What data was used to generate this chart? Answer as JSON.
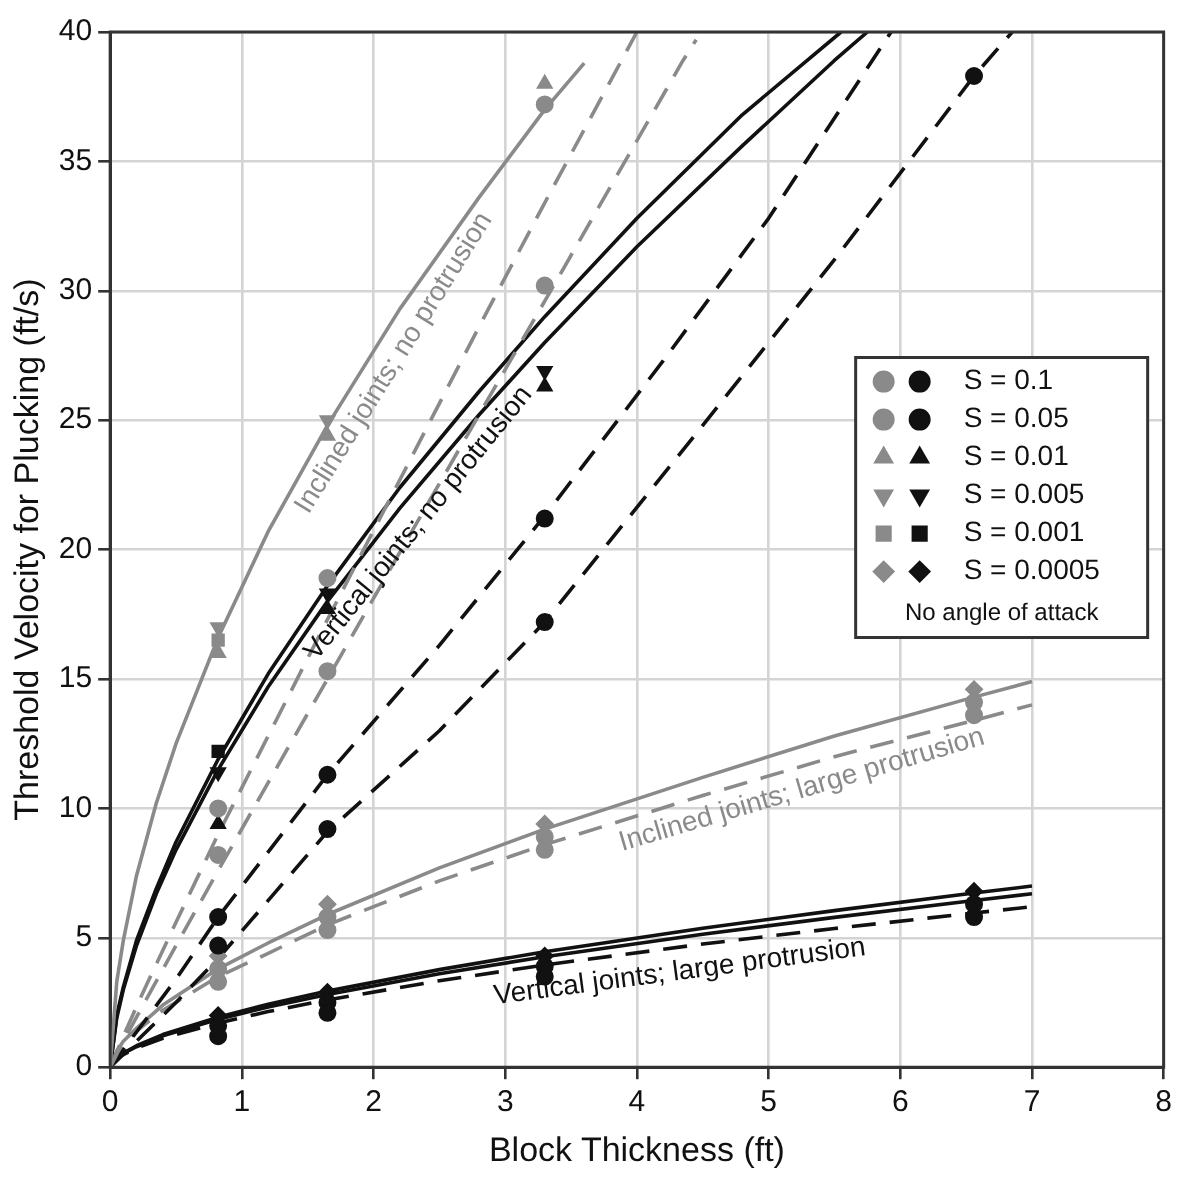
{
  "chart_data": {
    "type": "scatter",
    "xlabel": "Block Thickness (ft)",
    "ylabel": "Threshold Velocity for Plucking (ft/s)",
    "xlim": [
      0,
      8
    ],
    "xticks": [
      0,
      1,
      2,
      3,
      4,
      5,
      6,
      7,
      8
    ],
    "ylim": [
      0,
      40
    ],
    "yticks": [
      0,
      5,
      10,
      15,
      20,
      25,
      30,
      35,
      40
    ],
    "grid": true,
    "legend": "right",
    "legend_title": "No angle of attack",
    "annotations": [
      {
        "text": "Inclined joints; no protrusion",
        "x": 2.0,
        "y": 27.7
      },
      {
        "text": "Vertical joints; no protrusion",
        "x": 2.2,
        "y": 21.6
      },
      {
        "text": "Inclined joints; large protrusion",
        "x": 5.2,
        "y": 11.6
      },
      {
        "text": "Vertical joints; large protrusion",
        "x": 4.3,
        "y": 4.6
      }
    ],
    "series": [
      {
        "type": "line",
        "color": "#8a8a8a",
        "line_style": "solid",
        "x": [
          0,
          0.05,
          0.1,
          0.2,
          0.35,
          0.5,
          0.82,
          1.2,
          1.65,
          2.2,
          2.8,
          3.3,
          3.6
        ],
        "values": [
          0,
          3.3,
          4.9,
          7.4,
          10.2,
          12.5,
          16.6,
          20.7,
          24.8,
          29.3,
          33.6,
          37.0,
          38.8
        ]
      },
      {
        "type": "line",
        "color": "#8a8a8a",
        "line_style": "dashed",
        "x": [
          0,
          0.1,
          0.25,
          0.5,
          0.82,
          1.2,
          1.65,
          2.2,
          2.8,
          3.3,
          4.0
        ],
        "values": [
          0,
          1.2,
          2.9,
          5.6,
          9.0,
          12.8,
          17.3,
          22.7,
          28.6,
          33.4,
          40
        ]
      },
      {
        "type": "line",
        "color": "#8a8a8a",
        "line_style": "dashed",
        "x": [
          0,
          0.1,
          0.25,
          0.5,
          0.82,
          1.2,
          1.65,
          2.2,
          2.8,
          3.3,
          4.0,
          4.35,
          4.45
        ],
        "values": [
          0,
          1.0,
          2.4,
          4.7,
          7.6,
          11.0,
          15.0,
          19.9,
          25.2,
          29.6,
          35.8,
          38.9,
          39.7
        ]
      },
      {
        "type": "line",
        "color": "#111111",
        "line_style": "solid",
        "x": [
          0,
          0.05,
          0.1,
          0.2,
          0.35,
          0.5,
          0.82,
          1.2,
          1.65,
          2.2,
          2.8,
          3.3,
          4.0,
          4.8,
          5.5,
          5.75
        ],
        "values": [
          0,
          1.9,
          3.0,
          4.7,
          6.7,
          8.4,
          11.5,
          14.7,
          18.0,
          21.6,
          25.2,
          28.0,
          31.7,
          35.6,
          38.9,
          40
        ]
      },
      {
        "type": "line",
        "color": "#111111",
        "line_style": "solid",
        "x": [
          0,
          0.05,
          0.1,
          0.2,
          0.35,
          0.5,
          0.82,
          1.2,
          1.65,
          2.2,
          2.8,
          3.3,
          4.0,
          4.8,
          5.55
        ],
        "values": [
          0,
          2.0,
          3.1,
          4.9,
          6.9,
          8.7,
          11.9,
          15.2,
          18.6,
          22.4,
          26.1,
          29.0,
          32.8,
          36.8,
          40
        ]
      },
      {
        "type": "line",
        "color": "#111111",
        "line_style": "dashed",
        "x": [
          0,
          0.5,
          0.82,
          1.65,
          2.5,
          3.3,
          4.2,
          5.0,
          5.93
        ],
        "values": [
          0,
          3.4,
          5.8,
          11.3,
          16.3,
          21.3,
          27.3,
          32.8,
          40
        ]
      },
      {
        "type": "line",
        "color": "#111111",
        "line_style": "dashed",
        "x": [
          0,
          0.5,
          0.82,
          1.65,
          2.5,
          3.3,
          4.5,
          5.5,
          6.56,
          6.85
        ],
        "values": [
          0,
          2.5,
          4.2,
          9.1,
          13.0,
          17.2,
          24.8,
          31.2,
          38.3,
          40
        ]
      },
      {
        "type": "line",
        "color": "#8a8a8a",
        "line_style": "solid",
        "x": [
          0,
          0.05,
          0.1,
          0.2,
          0.4,
          0.82,
          1.2,
          1.65,
          2.5,
          3.3,
          4.5,
          5.5,
          6.56,
          7.0
        ],
        "values": [
          0,
          0.63,
          1.0,
          1.5,
          2.4,
          3.8,
          4.8,
          5.9,
          7.7,
          9.2,
          11.2,
          12.8,
          14.3,
          14.9
        ]
      },
      {
        "type": "line",
        "color": "#8a8a8a",
        "line_style": "dashed",
        "x": [
          0,
          0.05,
          0.1,
          0.2,
          0.4,
          0.82,
          1.2,
          1.65,
          2.5,
          3.3,
          4.5,
          5.5,
          6.56,
          7.0
        ],
        "values": [
          0,
          0.56,
          0.9,
          1.4,
          2.2,
          3.5,
          4.4,
          5.5,
          7.2,
          8.6,
          10.5,
          12.0,
          13.4,
          14.0
        ]
      },
      {
        "type": "line",
        "color": "#111111",
        "line_style": "solid",
        "x": [
          0,
          0.05,
          0.1,
          0.2,
          0.4,
          0.82,
          1.2,
          1.65,
          2.5,
          3.3,
          4.5,
          5.5,
          6.56,
          7.0
        ],
        "values": [
          0,
          0.36,
          0.55,
          0.83,
          1.26,
          1.93,
          2.43,
          2.94,
          3.77,
          4.46,
          5.37,
          6.05,
          6.73,
          7.0
        ]
      },
      {
        "type": "line",
        "color": "#111111",
        "line_style": "solid",
        "x": [
          0,
          0.05,
          0.1,
          0.2,
          0.4,
          0.82,
          1.2,
          1.65,
          2.5,
          3.3,
          4.5,
          5.5,
          6.56,
          7.0
        ],
        "values": [
          0,
          0.34,
          0.53,
          0.79,
          1.21,
          1.85,
          2.33,
          2.81,
          3.61,
          4.27,
          5.14,
          5.79,
          6.44,
          6.7
        ]
      },
      {
        "type": "line",
        "color": "#111111",
        "line_style": "dashed",
        "x": [
          0,
          0.05,
          0.1,
          0.2,
          0.4,
          0.82,
          1.2,
          1.65,
          2.5,
          3.3,
          4.5,
          5.5,
          6.56,
          7.0
        ],
        "values": [
          0,
          0.32,
          0.49,
          0.74,
          1.12,
          1.71,
          2.15,
          2.6,
          3.34,
          3.95,
          4.76,
          5.36,
          5.96,
          6.2
        ]
      },
      {
        "name": "S = 0.1",
        "marker": "circle",
        "x": [
          0.82,
          1.65,
          3.3,
          0.82,
          1.65,
          3.3,
          6.56,
          0.82,
          1.65,
          3.3,
          6.56,
          0.82,
          1.65,
          3.3,
          6.56
        ],
        "values": [
          8.2,
          15.3,
          30.2,
          3.3,
          5.3,
          8.4,
          13.6,
          4.7,
          9.2,
          17.2,
          38.3,
          1.2,
          2.1,
          3.5,
          5.8
        ],
        "colors": [
          "#8a8a8a",
          "#8a8a8a",
          "#8a8a8a",
          "#8a8a8a",
          "#8a8a8a",
          "#8a8a8a",
          "#8a8a8a",
          "#111111",
          "#111111",
          "#111111",
          "#111111",
          "#111111",
          "#111111",
          "#111111",
          "#111111"
        ]
      },
      {
        "name": "S = 0.05",
        "marker": "circle",
        "x": [
          0.82,
          1.65,
          3.3,
          0.82,
          1.65,
          3.3,
          6.56,
          0.82,
          1.65,
          3.3,
          0.82,
          1.65,
          3.3,
          6.56
        ],
        "values": [
          10.0,
          18.9,
          37.2,
          3.8,
          5.8,
          8.9,
          14.1,
          5.8,
          11.3,
          21.2,
          1.6,
          2.5,
          3.9,
          6.3
        ],
        "colors": [
          "#8a8a8a",
          "#8a8a8a",
          "#8a8a8a",
          "#8a8a8a",
          "#8a8a8a",
          "#8a8a8a",
          "#8a8a8a",
          "#111111",
          "#111111",
          "#111111",
          "#111111",
          "#111111",
          "#111111",
          "#111111"
        ]
      },
      {
        "name": "S = 0.01",
        "marker": "triangle",
        "x": [
          0.82,
          1.65,
          3.3,
          0.82,
          1.65,
          3.3
        ],
        "values": [
          16.0,
          24.4,
          38.0,
          9.4,
          17.7,
          26.3
        ],
        "colors": [
          "#8a8a8a",
          "#8a8a8a",
          "#8a8a8a",
          "#111111",
          "#111111",
          "#111111"
        ]
      },
      {
        "name": "S = 0.005",
        "marker": "triangle-down",
        "x": [
          0.82,
          1.65,
          0.82,
          1.65,
          3.3
        ],
        "values": [
          17.0,
          25.0,
          11.4,
          18.3,
          26.9
        ],
        "colors": [
          "#8a8a8a",
          "#8a8a8a",
          "#111111",
          "#111111",
          "#111111"
        ]
      },
      {
        "name": "S = 0.001",
        "marker": "square",
        "x": [
          0.82,
          0.82
        ],
        "values": [
          16.5,
          12.2
        ],
        "colors": [
          "#8a8a8a",
          "#111111"
        ]
      },
      {
        "name": "S = 0.0005",
        "marker": "diamond",
        "x": [
          0.82,
          1.65,
          3.3,
          6.56,
          0.82,
          1.65,
          3.3,
          6.56
        ],
        "values": [
          4.3,
          6.3,
          9.4,
          14.6,
          2.0,
          2.9,
          4.3,
          6.8
        ],
        "colors": [
          "#8a8a8a",
          "#8a8a8a",
          "#8a8a8a",
          "#8a8a8a",
          "#111111",
          "#111111",
          "#111111",
          "#111111"
        ]
      }
    ]
  }
}
